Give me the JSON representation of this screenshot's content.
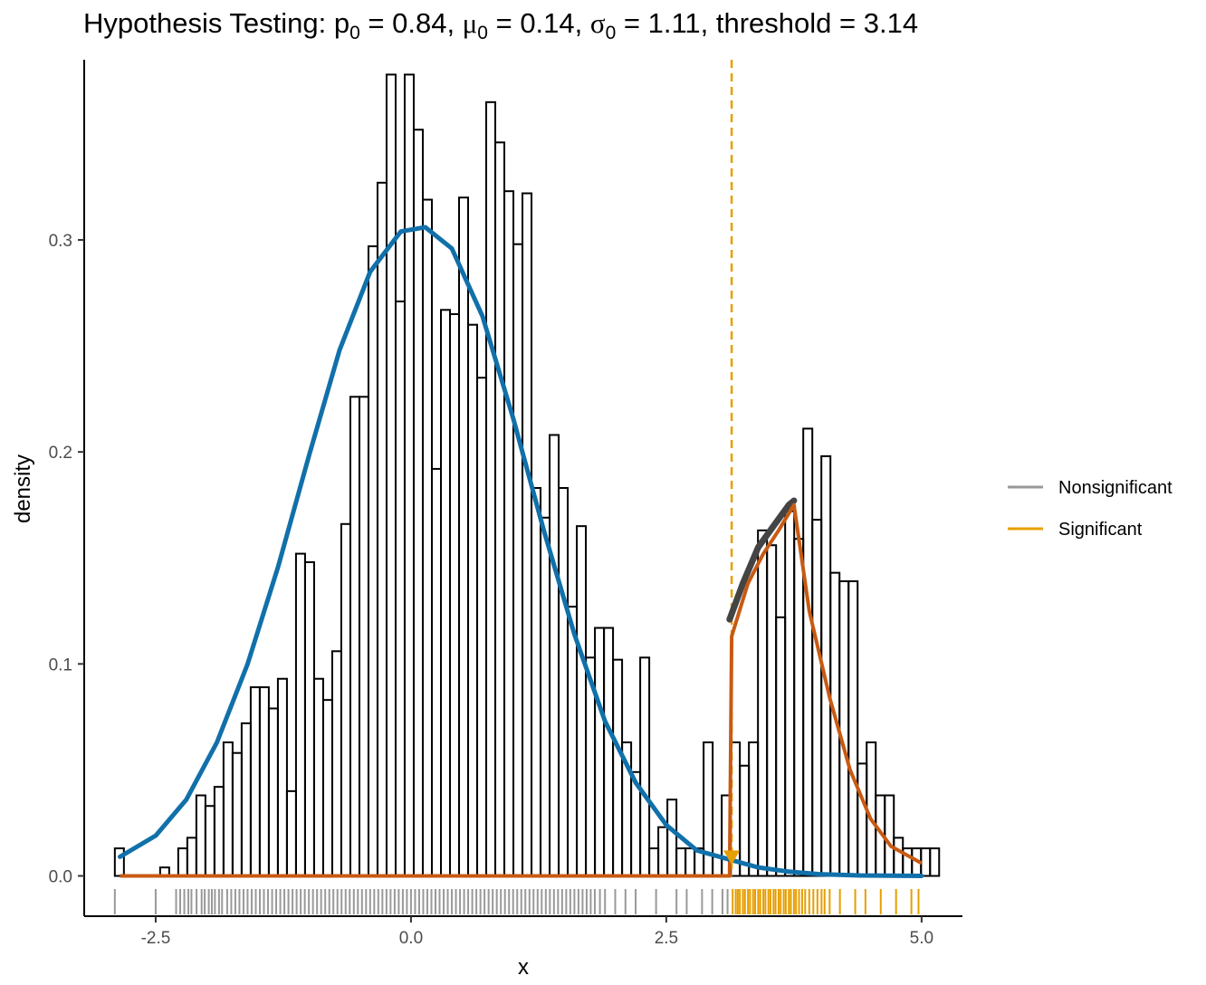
{
  "chart_data": {
    "type": "histogram",
    "title_parts": {
      "prefix": "Hypothesis Testing: p",
      "p_sub": "0",
      "p_val": " = 0.84, ",
      "mu_sym": "μ",
      "mu_sub": "0",
      "mu_val": " = 0.14, ",
      "sigma_sym": "σ",
      "sigma_sub": "0",
      "sigma_val": " = 1.11, threshold = 3.14"
    },
    "xlabel": "x",
    "ylabel": "density",
    "xlim": [
      -3.2,
      5.4
    ],
    "ylim": [
      -0.019,
      0.385
    ],
    "x_ticks": [
      -2.5,
      0.0,
      2.5,
      5.0
    ],
    "x_tick_labels": [
      "-2.5",
      "0.0",
      "2.5",
      "5.0"
    ],
    "y_ticks": [
      0.0,
      0.1,
      0.2,
      0.3
    ],
    "y_tick_labels": [
      "0.0",
      "0.1",
      "0.2",
      "0.3"
    ],
    "threshold": 3.14,
    "grid": false,
    "legend_position": "right",
    "colors": {
      "nonsignificant": "#999999",
      "significant": "#E69F00",
      "null_curve": "#1170AA",
      "alt_curve": "#C85A12",
      "kde_curve": "#444444",
      "bar_stroke": "#000000"
    },
    "histogram": {
      "bin_start": -2.9,
      "bin_width": 0.0887,
      "densities": [
        0.013,
        0,
        0,
        0,
        0,
        0.004,
        0,
        0.013,
        0.018,
        0.038,
        0.033,
        0.042,
        0.063,
        0.058,
        0.072,
        0.089,
        0.089,
        0.079,
        0.093,
        0.04,
        0.152,
        0.148,
        0.093,
        0.083,
        0.106,
        0.166,
        0.226,
        0.226,
        0.297,
        0.327,
        0.378,
        0.271,
        0.378,
        0.352,
        0.319,
        0.192,
        0.267,
        0.265,
        0.32,
        0.26,
        0.235,
        0.365,
        0.346,
        0.323,
        0.298,
        0.322,
        0.183,
        0.169,
        0.208,
        0.183,
        0.127,
        0.165,
        0.103,
        0.117,
        0.117,
        0.102,
        0.063,
        0.049,
        0.103,
        0.013,
        0.023,
        0.036,
        0.013,
        0.013,
        0.013,
        0.063,
        0.009,
        0.038,
        0.063,
        0.052,
        0.063,
        0.163,
        0.156,
        0.122,
        0.172,
        0.159,
        0.211,
        0.168,
        0.198,
        0.143,
        0.139,
        0.139,
        0.053,
        0.063,
        0.038,
        0.038,
        0.018,
        0.013,
        0.013,
        0.013,
        0.013
      ]
    },
    "series": [
      {
        "name": "null_density",
        "x": [
          -2.85,
          -2.5,
          -2.2,
          -1.9,
          -1.6,
          -1.3,
          -1.0,
          -0.7,
          -0.4,
          -0.1,
          0.14,
          0.4,
          0.7,
          1.0,
          1.3,
          1.6,
          1.9,
          2.2,
          2.5,
          2.8,
          3.1,
          3.4,
          3.7,
          4.0,
          4.4,
          5.0
        ],
        "y": [
          0.009,
          0.019,
          0.036,
          0.063,
          0.1,
          0.146,
          0.198,
          0.248,
          0.285,
          0.304,
          0.306,
          0.296,
          0.264,
          0.216,
          0.163,
          0.114,
          0.073,
          0.044,
          0.024,
          0.012,
          0.008,
          0.004,
          0.002,
          0.0008,
          0.0002,
          0.0
        ]
      },
      {
        "name": "alt_density",
        "x": [
          -2.85,
          3.12,
          3.14,
          3.3,
          3.45,
          3.6,
          3.75,
          3.9,
          4.1,
          4.3,
          4.5,
          4.7,
          5.0
        ],
        "y": [
          0.0,
          0.0,
          0.113,
          0.138,
          0.152,
          0.163,
          0.175,
          0.125,
          0.084,
          0.05,
          0.027,
          0.014,
          0.006
        ]
      },
      {
        "name": "kde",
        "x": [
          3.12,
          3.25,
          3.4,
          3.55,
          3.7,
          3.75
        ],
        "y": [
          0.121,
          0.138,
          0.155,
          0.165,
          0.175,
          0.177
        ]
      }
    ],
    "threshold_marker_y": 0.009,
    "rug": {
      "nonsignificant": [
        -2.9,
        -2.5,
        -2.3,
        -2.26,
        -2.22,
        -2.18,
        -2.15,
        -2.1,
        -2.05,
        -2.02,
        -1.98,
        -1.95,
        -1.92,
        -1.88,
        -1.85,
        -1.8,
        -1.76,
        -1.72,
        -1.68,
        -1.64,
        -1.6,
        -1.56,
        -1.52,
        -1.48,
        -1.44,
        -1.4,
        -1.36,
        -1.32,
        -1.28,
        -1.24,
        -1.2,
        -1.16,
        -1.12,
        -1.08,
        -1.04,
        -1.0,
        -0.96,
        -0.92,
        -0.88,
        -0.84,
        -0.8,
        -0.76,
        -0.72,
        -0.68,
        -0.64,
        -0.6,
        -0.56,
        -0.52,
        -0.48,
        -0.44,
        -0.4,
        -0.36,
        -0.32,
        -0.28,
        -0.24,
        -0.2,
        -0.16,
        -0.12,
        -0.08,
        -0.04,
        0.0,
        0.04,
        0.08,
        0.12,
        0.16,
        0.2,
        0.24,
        0.28,
        0.32,
        0.36,
        0.4,
        0.44,
        0.48,
        0.52,
        0.56,
        0.6,
        0.64,
        0.68,
        0.72,
        0.76,
        0.8,
        0.84,
        0.88,
        0.92,
        0.96,
        1.0,
        1.04,
        1.08,
        1.12,
        1.16,
        1.2,
        1.24,
        1.28,
        1.32,
        1.36,
        1.4,
        1.44,
        1.48,
        1.52,
        1.56,
        1.6,
        1.64,
        1.68,
        1.72,
        1.76,
        1.8,
        1.85,
        1.9,
        2.0,
        2.1,
        2.2,
        2.4,
        2.6,
        2.7,
        2.85,
        2.95,
        3.05,
        3.1
      ],
      "significant": [
        3.15,
        3.18,
        3.2,
        3.22,
        3.25,
        3.27,
        3.3,
        3.32,
        3.35,
        3.37,
        3.4,
        3.42,
        3.45,
        3.47,
        3.5,
        3.52,
        3.55,
        3.57,
        3.6,
        3.62,
        3.65,
        3.67,
        3.7,
        3.72,
        3.75,
        3.77,
        3.8,
        3.83,
        3.86,
        3.9,
        3.94,
        3.98,
        4.02,
        4.05,
        4.1,
        4.2,
        4.35,
        4.45,
        4.6,
        4.75,
        4.9,
        4.97
      ]
    },
    "legend": [
      {
        "label": "Nonsignificant",
        "color": "#999999"
      },
      {
        "label": "Significant",
        "color": "#E69F00"
      }
    ]
  }
}
